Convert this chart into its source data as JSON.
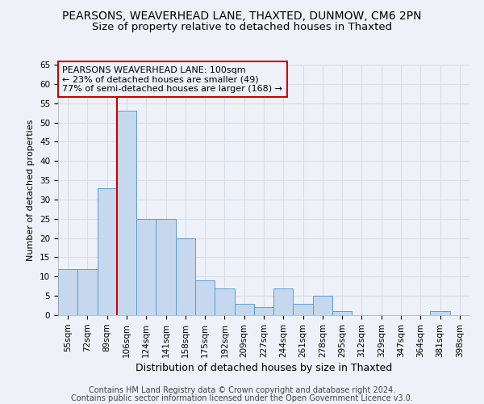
{
  "title1": "PEARSONS, WEAVERHEAD LANE, THAXTED, DUNMOW, CM6 2PN",
  "title2": "Size of property relative to detached houses in Thaxted",
  "xlabel": "Distribution of detached houses by size in Thaxted",
  "ylabel": "Number of detached properties",
  "categories": [
    "55sqm",
    "72sqm",
    "89sqm",
    "106sqm",
    "124sqm",
    "141sqm",
    "158sqm",
    "175sqm",
    "192sqm",
    "209sqm",
    "227sqm",
    "244sqm",
    "261sqm",
    "278sqm",
    "295sqm",
    "312sqm",
    "329sqm",
    "347sqm",
    "364sqm",
    "381sqm",
    "398sqm"
  ],
  "values": [
    12,
    12,
    33,
    53,
    25,
    25,
    20,
    9,
    7,
    3,
    2,
    7,
    3,
    5,
    1,
    0,
    0,
    0,
    0,
    1,
    0
  ],
  "bar_color": "#c5d8ed",
  "bar_edge_color": "#5b9bd5",
  "vline_x": 2.5,
  "vline_color": "#cc0000",
  "ylim": [
    0,
    65
  ],
  "yticks": [
    0,
    5,
    10,
    15,
    20,
    25,
    30,
    35,
    40,
    45,
    50,
    55,
    60,
    65
  ],
  "annotation_title": "PEARSONS WEAVERHEAD LANE: 100sqm",
  "annotation_line1": "← 23% of detached houses are smaller (49)",
  "annotation_line2": "77% of semi-detached houses are larger (168) →",
  "footer1": "Contains HM Land Registry data © Crown copyright and database right 2024.",
  "footer2": "Contains public sector information licensed under the Open Government Licence v3.0.",
  "background_color": "#eef2f8",
  "grid_color": "#d8dfe8",
  "title1_fontsize": 10,
  "title2_fontsize": 9.5,
  "xlabel_fontsize": 9,
  "ylabel_fontsize": 8,
  "tick_fontsize": 7.5,
  "annot_fontsize": 8,
  "footer_fontsize": 7
}
